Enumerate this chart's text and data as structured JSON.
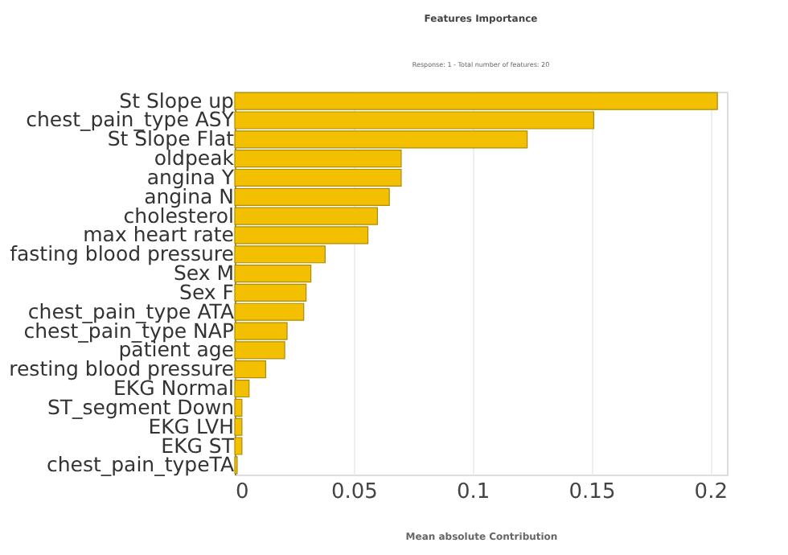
{
  "chart_data": {
    "type": "bar",
    "orientation": "horizontal",
    "title": "Features Importance",
    "subtitle": "Response: 1 - Total number of features: 20",
    "xlabel": "Mean absolute Contribution",
    "categories": [
      "St Slope up",
      "chest_pain_type ASY",
      "St Slope Flat",
      "oldpeak",
      "angina Y",
      "angina N",
      "cholesterol",
      "max heart rate",
      "fasting blood pressure",
      "Sex M",
      "Sex F",
      "chest_pain_type ATA",
      "chest_pain_type NAP",
      "patient age",
      "resting blood pressure",
      "EKG Normal",
      "ST_segment Down",
      "EKG LVH",
      "EKG ST",
      "chest_pain_typeTA"
    ],
    "values": [
      0.203,
      0.151,
      0.123,
      0.07,
      0.07,
      0.065,
      0.06,
      0.056,
      0.038,
      0.032,
      0.03,
      0.029,
      0.022,
      0.021,
      0.013,
      0.006,
      0.003,
      0.003,
      0.003,
      0.001
    ],
    "color": "#f2c000",
    "xlim": [
      0,
      0.207
    ],
    "xticks": [
      0,
      0.05,
      0.1,
      0.15,
      0.2
    ],
    "grid": "x"
  }
}
